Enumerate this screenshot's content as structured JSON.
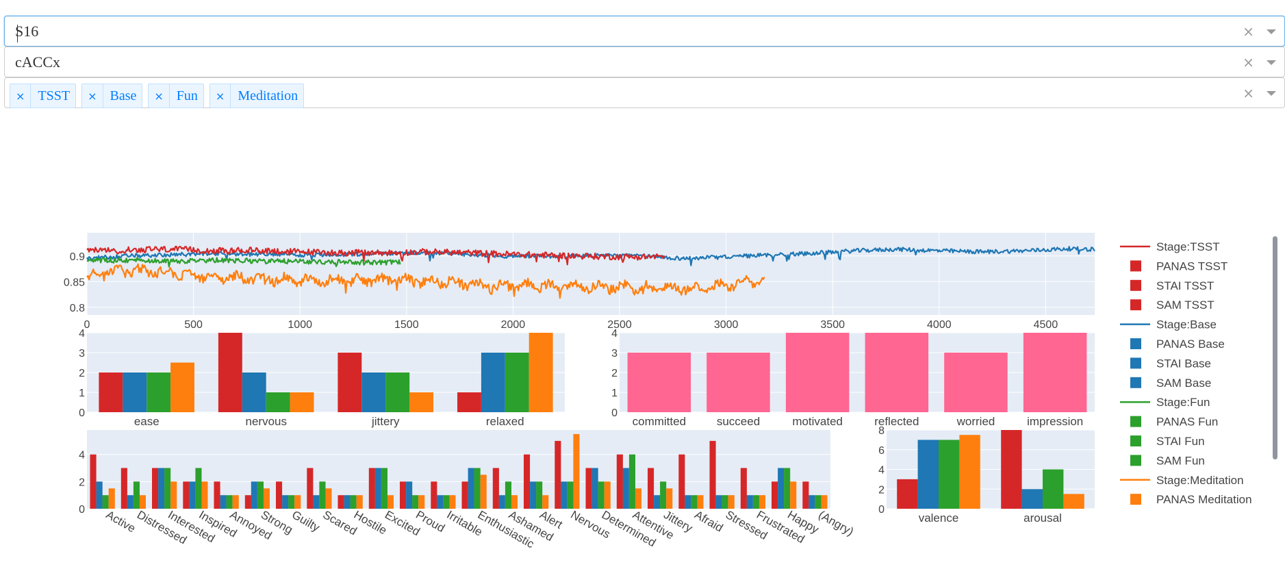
{
  "controls": {
    "subject": {
      "value": "S16",
      "clear_icon": "×"
    },
    "signal": {
      "value": "cACCx",
      "clear_icon": "×"
    },
    "stages": {
      "tags": [
        "TSST",
        "Base",
        "Fun",
        "Meditation"
      ],
      "remove_icon": "×",
      "clear_icon": "×"
    }
  },
  "colors": {
    "TSST": "#d62728",
    "Base": "#1f77b4",
    "Fun": "#2ca02c",
    "Meditation": "#ff7f0e",
    "pink": "#ff6692",
    "plot_bg": "#e5ecf6"
  },
  "legend": {
    "entries": [
      {
        "label": "Stage:TSST",
        "kind": "line",
        "stage": "TSST"
      },
      {
        "label": "PANAS TSST",
        "kind": "box",
        "stage": "TSST"
      },
      {
        "label": "STAI TSST",
        "kind": "box",
        "stage": "TSST"
      },
      {
        "label": "SAM  TSST",
        "kind": "box",
        "stage": "TSST"
      },
      {
        "label": "Stage:Base",
        "kind": "line",
        "stage": "Base"
      },
      {
        "label": "PANAS Base",
        "kind": "box",
        "stage": "Base"
      },
      {
        "label": "STAI Base",
        "kind": "box",
        "stage": "Base"
      },
      {
        "label": "SAM  Base",
        "kind": "box",
        "stage": "Base"
      },
      {
        "label": "Stage:Fun",
        "kind": "line",
        "stage": "Fun"
      },
      {
        "label": "PANAS Fun",
        "kind": "box",
        "stage": "Fun"
      },
      {
        "label": "STAI Fun",
        "kind": "box",
        "stage": "Fun"
      },
      {
        "label": "SAM  Fun",
        "kind": "box",
        "stage": "Fun"
      },
      {
        "label": "Stage:Meditation",
        "kind": "line",
        "stage": "Meditation"
      },
      {
        "label": "PANAS Meditation",
        "kind": "box",
        "stage": "Meditation"
      }
    ]
  },
  "chart_data": [
    {
      "type": "line",
      "xlim": [
        0,
        4730
      ],
      "ylim": [
        0.785,
        0.945
      ],
      "xticks": [
        0,
        500,
        1000,
        1500,
        2000,
        2500,
        3000,
        3500,
        4000,
        4500
      ],
      "yticks": [
        0.8,
        0.85,
        0.9
      ],
      "ytick_labels": [
        "0.8",
        "0.85",
        "0.9"
      ],
      "series": [
        {
          "name": "Stage:Base",
          "stage": "Base",
          "x_end": 4730,
          "points": [
            [
              0,
              0.895
            ],
            [
              200,
              0.9
            ],
            [
              400,
              0.902
            ],
            [
              600,
              0.905
            ],
            [
              800,
              0.903
            ],
            [
              1000,
              0.902
            ],
            [
              1200,
              0.903
            ],
            [
              1400,
              0.905
            ],
            [
              1600,
              0.906
            ],
            [
              1800,
              0.903
            ],
            [
              2000,
              0.899
            ],
            [
              2200,
              0.9
            ],
            [
              2400,
              0.901
            ],
            [
              2600,
              0.9
            ],
            [
              2800,
              0.895
            ],
            [
              3000,
              0.898
            ],
            [
              3200,
              0.902
            ],
            [
              3400,
              0.905
            ],
            [
              3600,
              0.91
            ],
            [
              3800,
              0.913
            ],
            [
              4000,
              0.91
            ],
            [
              4200,
              0.908
            ],
            [
              4400,
              0.91
            ],
            [
              4600,
              0.914
            ],
            [
              4730,
              0.913
            ]
          ]
        },
        {
          "name": "Stage:TSST",
          "stage": "TSST",
          "x_end": 2710,
          "points": [
            [
              0,
              0.91
            ],
            [
              200,
              0.912
            ],
            [
              400,
              0.913
            ],
            [
              600,
              0.91
            ],
            [
              800,
              0.911
            ],
            [
              1000,
              0.908
            ],
            [
              1200,
              0.906
            ],
            [
              1400,
              0.906
            ],
            [
              1600,
              0.908
            ],
            [
              1800,
              0.906
            ],
            [
              2000,
              0.903
            ],
            [
              2200,
              0.901
            ],
            [
              2400,
              0.899
            ],
            [
              2600,
              0.898
            ],
            [
              2710,
              0.899
            ]
          ]
        },
        {
          "name": "Stage:Fun",
          "stage": "Fun",
          "x_end": 1470,
          "points": [
            [
              0,
              0.89
            ],
            [
              200,
              0.892
            ],
            [
              400,
              0.89
            ],
            [
              600,
              0.892
            ],
            [
              800,
              0.89
            ],
            [
              1000,
              0.889
            ],
            [
              1200,
              0.888
            ],
            [
              1400,
              0.887
            ],
            [
              1470,
              0.888
            ]
          ]
        },
        {
          "name": "Stage:Meditation",
          "stage": "Meditation",
          "x_end": 3180,
          "points": [
            [
              0,
              0.858
            ],
            [
              100,
              0.868
            ],
            [
              250,
              0.872
            ],
            [
              500,
              0.862
            ],
            [
              800,
              0.855
            ],
            [
              1100,
              0.853
            ],
            [
              1400,
              0.853
            ],
            [
              1700,
              0.85
            ],
            [
              1900,
              0.84
            ],
            [
              2100,
              0.843
            ],
            [
              2400,
              0.84
            ],
            [
              2700,
              0.838
            ],
            [
              2900,
              0.838
            ],
            [
              3100,
              0.848
            ],
            [
              3180,
              0.852
            ]
          ]
        }
      ]
    },
    {
      "type": "bar",
      "categories": [
        "ease",
        "nervous",
        "jittery",
        "relaxed"
      ],
      "series": [
        {
          "stage": "TSST",
          "values": [
            2,
            4,
            3,
            1
          ]
        },
        {
          "stage": "Base",
          "values": [
            2,
            2,
            2,
            3
          ]
        },
        {
          "stage": "Fun",
          "values": [
            2,
            1,
            2,
            3
          ]
        },
        {
          "stage": "Meditation",
          "values": [
            2.5,
            1,
            1,
            4
          ]
        }
      ],
      "ylim": [
        0,
        4
      ],
      "yticks": [
        0,
        1,
        2,
        3,
        4
      ]
    },
    {
      "type": "bar",
      "categories": [
        "committed",
        "succeed",
        "motivated",
        "reflected",
        "worried",
        "impression"
      ],
      "values": [
        3,
        3,
        4,
        4,
        3,
        4
      ],
      "color": "pink",
      "ylim": [
        0,
        4
      ],
      "yticks": [
        0,
        1,
        2,
        3,
        4
      ]
    },
    {
      "type": "bar",
      "categories": [
        "Active",
        "Distressed",
        "Interested",
        "Inspired",
        "Annoyed",
        "Strong",
        "Guilty",
        "Scared",
        "Hostile",
        "Excited",
        "Proud",
        "Irritable",
        "Enthusiastic",
        "Ashamed",
        "Alert",
        "Nervous",
        "Determined",
        "Attentive",
        "Jittery",
        "Afraid",
        "Stressed",
        "Frustrated",
        "Happy",
        "(Angry)"
      ],
      "series": [
        {
          "stage": "TSST",
          "values": [
            4,
            3,
            3,
            2,
            2,
            1,
            2,
            3,
            1,
            3,
            2,
            2,
            2,
            3,
            4,
            5,
            3,
            4,
            3,
            4,
            5,
            3,
            2,
            2
          ]
        },
        {
          "stage": "Base",
          "values": [
            2,
            1,
            3,
            2,
            1,
            2,
            1,
            1,
            1,
            3,
            2,
            1,
            3,
            1,
            2,
            2,
            3,
            3,
            1,
            1,
            1,
            1,
            3,
            1
          ]
        },
        {
          "stage": "Fun",
          "values": [
            1,
            2,
            3,
            3,
            1,
            2,
            1,
            2,
            1,
            3,
            1,
            1,
            3,
            2,
            2,
            2,
            2,
            4,
            2,
            1,
            1,
            1,
            3,
            1
          ]
        },
        {
          "stage": "Meditation",
          "values": [
            1.5,
            1,
            2,
            2,
            1,
            1.5,
            1,
            1.5,
            1,
            1,
            1,
            1,
            2.5,
            1,
            1,
            5.5,
            2,
            1.5,
            1.5,
            1,
            1,
            1,
            2,
            1
          ]
        }
      ],
      "ylim": [
        0,
        5.8
      ],
      "yticks": [
        0,
        2,
        4
      ]
    },
    {
      "type": "bar",
      "categories": [
        "valence",
        "arousal"
      ],
      "series": [
        {
          "stage": "TSST",
          "values": [
            3,
            8
          ]
        },
        {
          "stage": "Base",
          "values": [
            7,
            2
          ]
        },
        {
          "stage": "Fun",
          "values": [
            7,
            4
          ]
        },
        {
          "stage": "Meditation",
          "values": [
            7.5,
            1.5
          ]
        }
      ],
      "ylim": [
        0,
        8
      ],
      "yticks": [
        0,
        2,
        4,
        6,
        8
      ]
    }
  ]
}
